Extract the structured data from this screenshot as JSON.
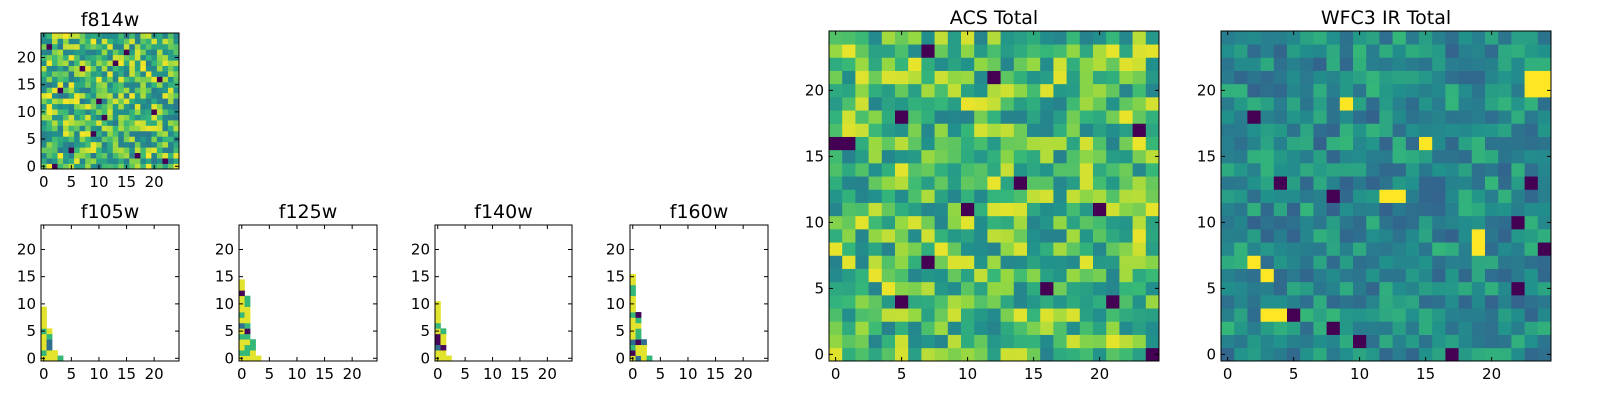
{
  "figure": {
    "panels": [
      {
        "id": "f814w",
        "title": "f814w"
      },
      {
        "id": "f105w",
        "title": "f105w"
      },
      {
        "id": "f125w",
        "title": "f125w"
      },
      {
        "id": "f140w",
        "title": "f140w"
      },
      {
        "id": "f160w",
        "title": "f160w"
      },
      {
        "id": "acs_total",
        "title": "ACS Total"
      },
      {
        "id": "wfc3_ir_total",
        "title": "WFC3 IR Total"
      }
    ]
  },
  "chart_data": [
    {
      "type": "heatmap",
      "title": "f814w",
      "grid_size": 25,
      "xlim": [
        -0.5,
        24.5
      ],
      "ylim": [
        -0.5,
        24.5
      ],
      "xticks": [
        0,
        5,
        10,
        15,
        20
      ],
      "yticks": [
        0,
        5,
        10,
        15,
        20
      ],
      "colormap": "viridis",
      "fill": "full",
      "dark_cells": [
        [
          2,
          0
        ],
        [
          5,
          3
        ],
        [
          9,
          6
        ],
        [
          17,
          2
        ],
        [
          11,
          9
        ],
        [
          20,
          10
        ],
        [
          3,
          14
        ],
        [
          21,
          16
        ],
        [
          7,
          18
        ],
        [
          13,
          19
        ],
        [
          15,
          21
        ],
        [
          1,
          22
        ],
        [
          10,
          12
        ],
        [
          22,
          1
        ]
      ]
    },
    {
      "type": "heatmap",
      "title": "f105w",
      "grid_size": 25,
      "xlim": [
        -0.5,
        24.5
      ],
      "ylim": [
        -0.5,
        24.5
      ],
      "xticks": [
        0,
        5,
        10,
        15,
        20
      ],
      "yticks": [
        0,
        5,
        10,
        15,
        20
      ],
      "colormap": "viridis",
      "fill": "partial",
      "column_heights": [
        10,
        6,
        2,
        1
      ]
    },
    {
      "type": "heatmap",
      "title": "f125w",
      "grid_size": 25,
      "xlim": [
        -0.5,
        24.5
      ],
      "ylim": [
        -0.5,
        24.5
      ],
      "xticks": [
        0,
        5,
        10,
        15,
        20
      ],
      "yticks": [
        0,
        5,
        10,
        15,
        20
      ],
      "colormap": "viridis",
      "fill": "partial",
      "column_heights": [
        15,
        12,
        4,
        1
      ]
    },
    {
      "type": "heatmap",
      "title": "f140w",
      "grid_size": 25,
      "xlim": [
        -0.5,
        24.5
      ],
      "ylim": [
        -0.5,
        24.5
      ],
      "xticks": [
        0,
        5,
        10,
        15,
        20
      ],
      "yticks": [
        0,
        5,
        10,
        15,
        20
      ],
      "colormap": "viridis",
      "fill": "partial",
      "column_heights": [
        11,
        6,
        1
      ]
    },
    {
      "type": "heatmap",
      "title": "f160w",
      "grid_size": 25,
      "xlim": [
        -0.5,
        24.5
      ],
      "ylim": [
        -0.5,
        24.5
      ],
      "xticks": [
        0,
        5,
        10,
        15,
        20
      ],
      "yticks": [
        0,
        5,
        10,
        15,
        20
      ],
      "colormap": "viridis",
      "fill": "partial",
      "column_heights": [
        16,
        9,
        4,
        1
      ]
    },
    {
      "type": "heatmap",
      "title": "ACS Total",
      "grid_size": 25,
      "xlim": [
        -0.5,
        24.5
      ],
      "ylim": [
        -0.5,
        24.5
      ],
      "xticks": [
        0,
        5,
        10,
        15,
        20
      ],
      "yticks": [
        0,
        5,
        10,
        15,
        20
      ],
      "colormap": "viridis",
      "fill": "full",
      "dark_cells": [
        [
          0,
          16
        ],
        [
          1,
          16
        ],
        [
          5,
          18
        ],
        [
          7,
          23
        ],
        [
          5,
          4
        ],
        [
          7,
          7
        ],
        [
          10,
          11
        ],
        [
          14,
          13
        ],
        [
          16,
          5
        ],
        [
          20,
          11
        ],
        [
          21,
          4
        ],
        [
          24,
          0
        ],
        [
          12,
          21
        ],
        [
          23,
          17
        ]
      ]
    },
    {
      "type": "heatmap",
      "title": "WFC3 IR Total",
      "grid_size": 25,
      "xlim": [
        -0.5,
        24.5
      ],
      "ylim": [
        -0.5,
        24.5
      ],
      "xticks": [
        0,
        5,
        10,
        15,
        20
      ],
      "yticks": [
        0,
        5,
        10,
        15,
        20
      ],
      "colormap": "viridis",
      "fill": "full",
      "bright_cells": [
        [
          23,
          21
        ],
        [
          24,
          21
        ],
        [
          23,
          20
        ],
        [
          24,
          20
        ],
        [
          12,
          12
        ],
        [
          13,
          12
        ],
        [
          19,
          9
        ],
        [
          19,
          8
        ],
        [
          2,
          7
        ],
        [
          3,
          6
        ],
        [
          3,
          3
        ],
        [
          4,
          3
        ],
        [
          15,
          16
        ],
        [
          9,
          19
        ]
      ],
      "dark_cells": [
        [
          4,
          13
        ],
        [
          8,
          12
        ],
        [
          5,
          3
        ],
        [
          8,
          2
        ],
        [
          17,
          0
        ],
        [
          23,
          13
        ],
        [
          22,
          5
        ],
        [
          24,
          8
        ],
        [
          22,
          10
        ],
        [
          10,
          1
        ],
        [
          2,
          18
        ]
      ]
    }
  ]
}
